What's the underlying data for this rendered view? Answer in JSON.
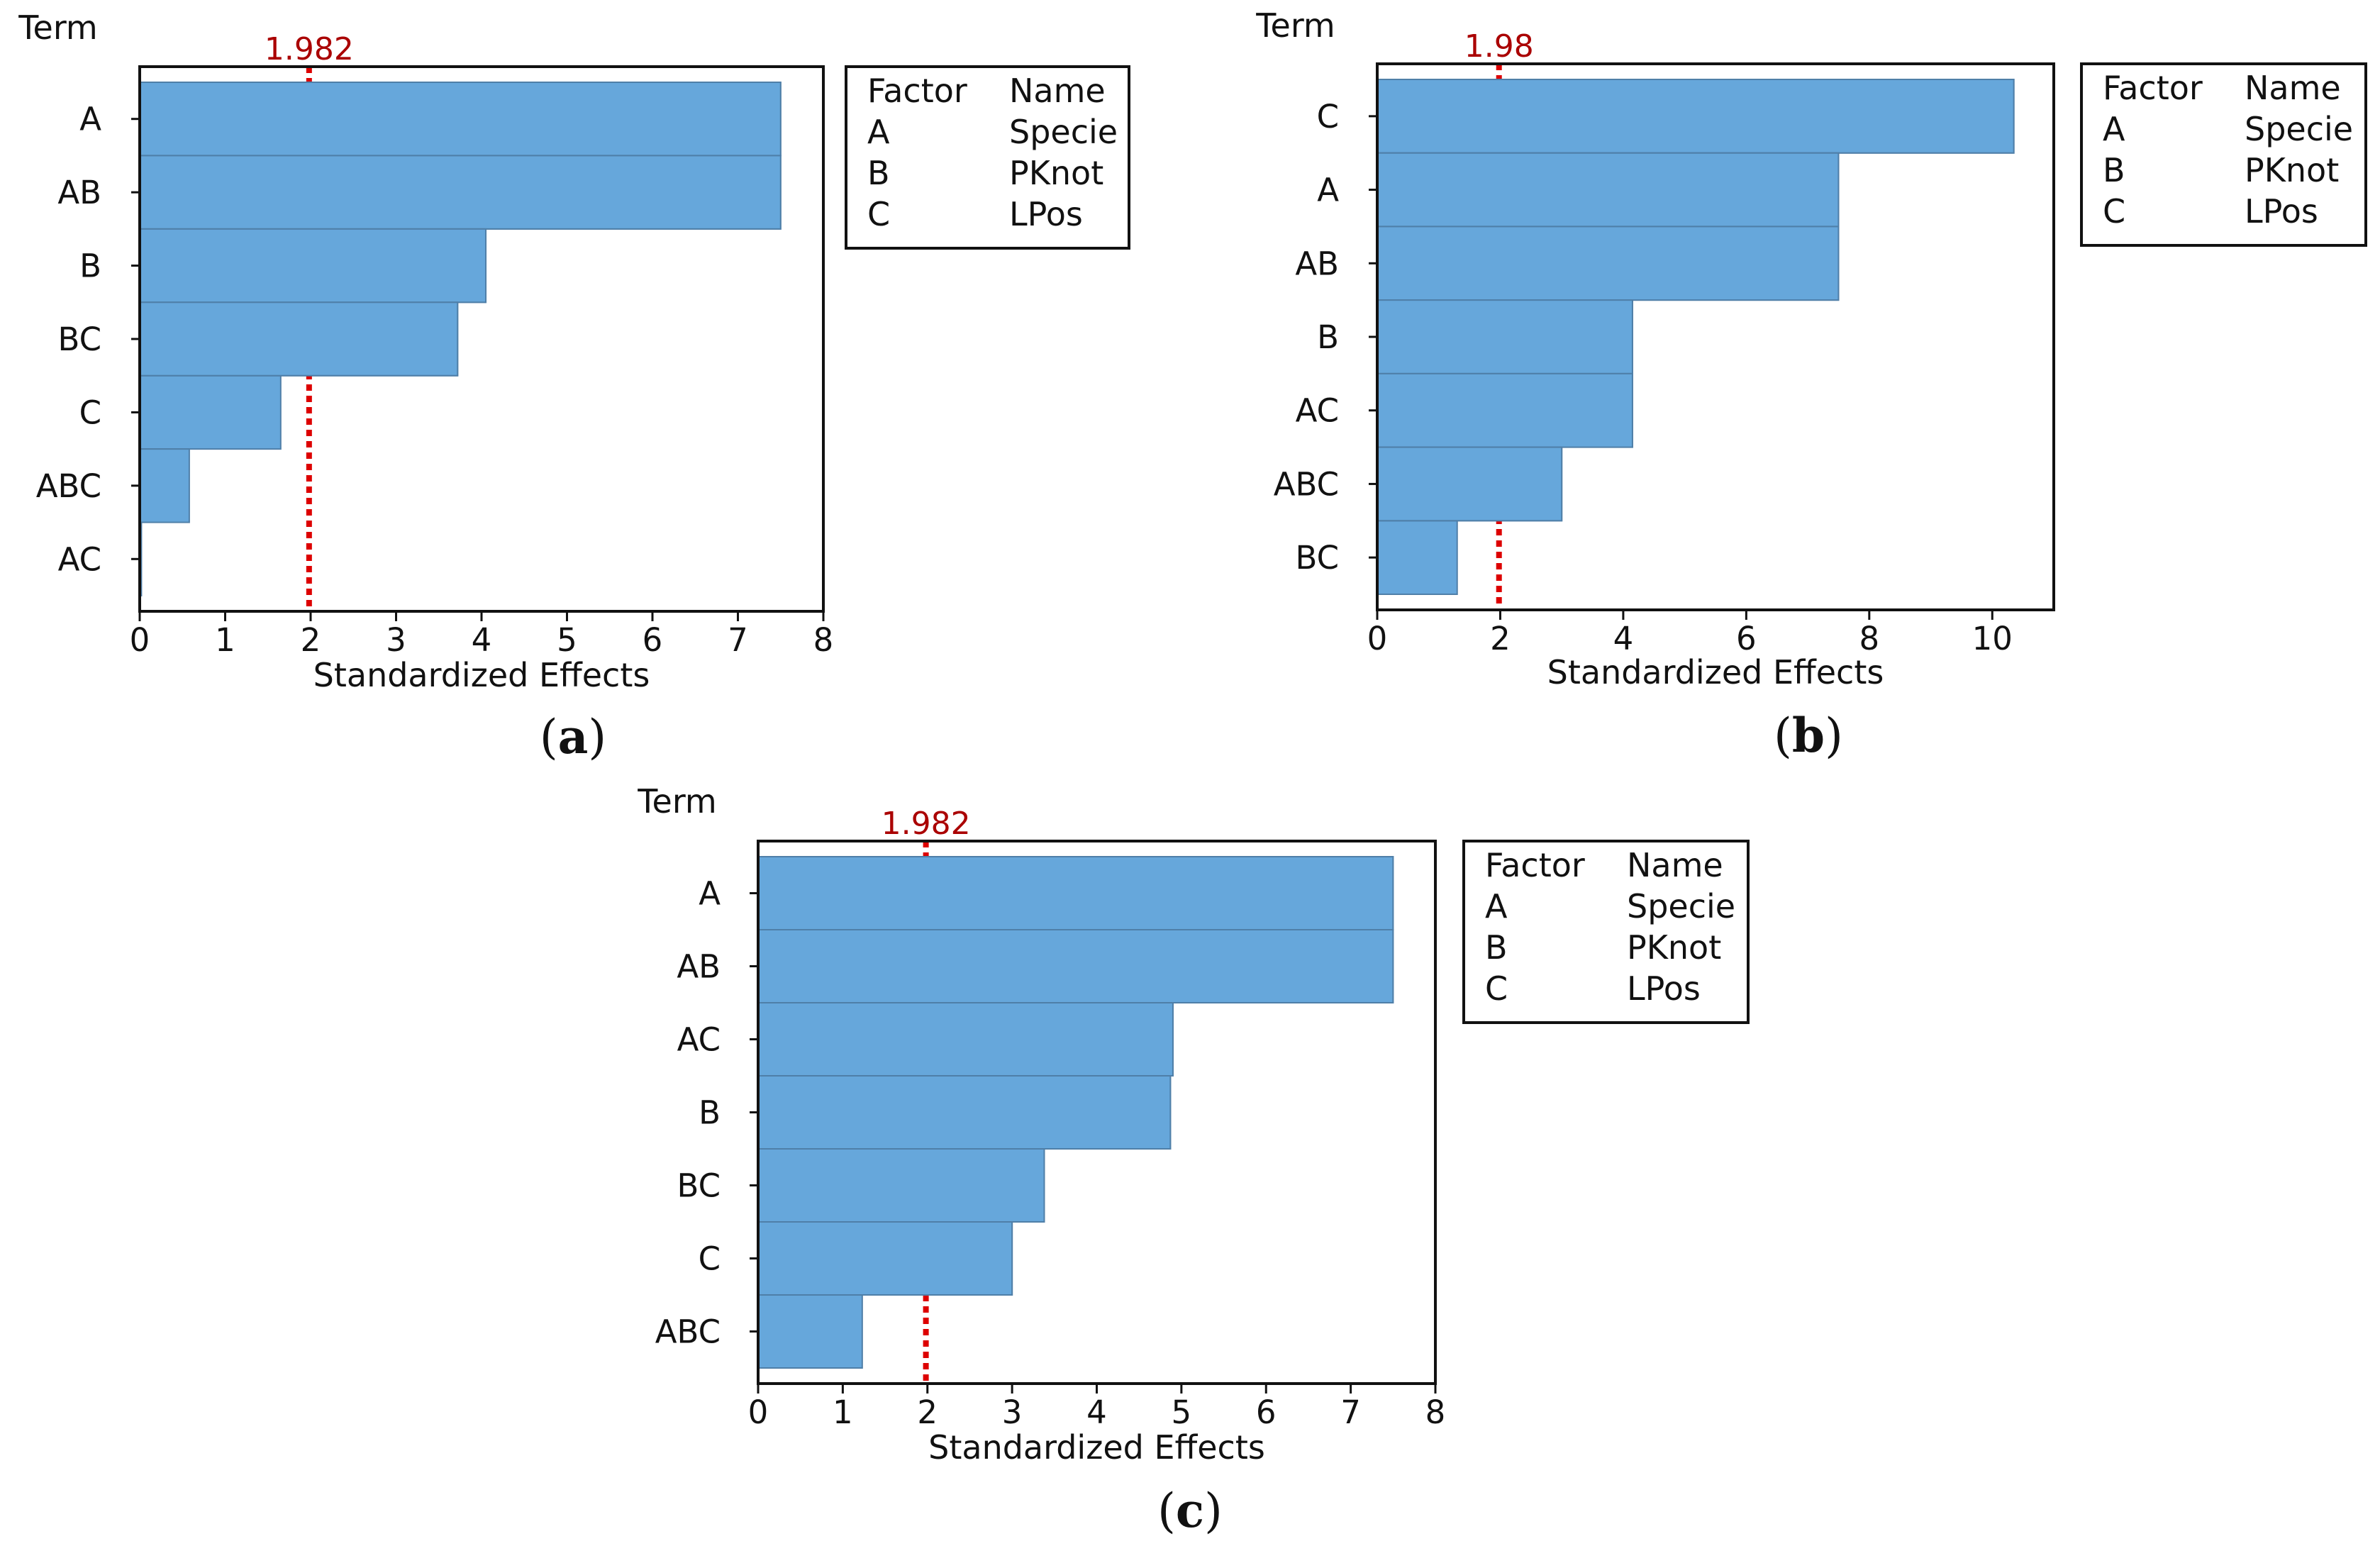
{
  "figure": {
    "bar_color": "#66a7db",
    "bar_edge": "#4f7fa8",
    "crit_color": "#dd0000",
    "crit_text_color": "#aa0000"
  },
  "chart_data": [
    {
      "id": "a",
      "type": "bar",
      "orientation": "horizontal",
      "panel_label": "(a)",
      "title": "",
      "ylabel": "Term",
      "xlabel": "Standardized Effects",
      "categories": [
        "A",
        "AB",
        "B",
        "BC",
        "C",
        "ABC",
        "AC"
      ],
      "values": [
        7.5,
        7.5,
        4.05,
        3.72,
        1.65,
        0.58,
        0.02
      ],
      "xlim": [
        0,
        8
      ],
      "xticks": [
        0,
        1,
        2,
        3,
        4,
        5,
        6,
        7,
        8
      ],
      "xtick_labels": [
        "0",
        "1",
        "2",
        "3",
        "4",
        "5",
        "6",
        "7",
        "8"
      ],
      "critical_value": 1.982,
      "critical_label": "1.982",
      "legend": {
        "header": [
          "Factor",
          "Name"
        ],
        "rows": [
          [
            "A",
            "Specie"
          ],
          [
            "B",
            "PKnot"
          ],
          [
            "C",
            "LPos"
          ]
        ]
      }
    },
    {
      "id": "b",
      "type": "bar",
      "orientation": "horizontal",
      "panel_label": "(b)",
      "title": "",
      "ylabel": "Term",
      "xlabel": "Standardized Effects",
      "categories": [
        "C",
        "A",
        "AB",
        "B",
        "AC",
        "ABC",
        "BC"
      ],
      "values": [
        10.35,
        7.5,
        7.5,
        4.15,
        4.15,
        3.0,
        1.3
      ],
      "xlim": [
        0,
        11
      ],
      "xticks": [
        0,
        2,
        4,
        6,
        8,
        10
      ],
      "xtick_labels": [
        "0",
        "2",
        "4",
        "6",
        "8",
        "10"
      ],
      "critical_value": 1.98,
      "critical_label": "1.98",
      "legend": {
        "header": [
          "Factor",
          "Name"
        ],
        "rows": [
          [
            "A",
            "Specie"
          ],
          [
            "B",
            "PKnot"
          ],
          [
            "C",
            "LPos"
          ]
        ]
      }
    },
    {
      "id": "c",
      "type": "bar",
      "orientation": "horizontal",
      "panel_label": "(c)",
      "title": "",
      "ylabel": "Term",
      "xlabel": "Standardized Effects",
      "categories": [
        "A",
        "AB",
        "AC",
        "B",
        "BC",
        "C",
        "ABC"
      ],
      "values": [
        7.5,
        7.5,
        4.9,
        4.87,
        3.38,
        3.0,
        1.23
      ],
      "xlim": [
        0,
        8
      ],
      "xticks": [
        0,
        1,
        2,
        3,
        4,
        5,
        6,
        7,
        8
      ],
      "xtick_labels": [
        "0",
        "1",
        "2",
        "3",
        "4",
        "5",
        "6",
        "7",
        "8"
      ],
      "critical_value": 1.982,
      "critical_label": "1.982",
      "legend": {
        "header": [
          "Factor",
          "Name"
        ],
        "rows": [
          [
            "A",
            "Specie"
          ],
          [
            "B",
            "PKnot"
          ],
          [
            "C",
            "LPos"
          ]
        ]
      }
    }
  ]
}
